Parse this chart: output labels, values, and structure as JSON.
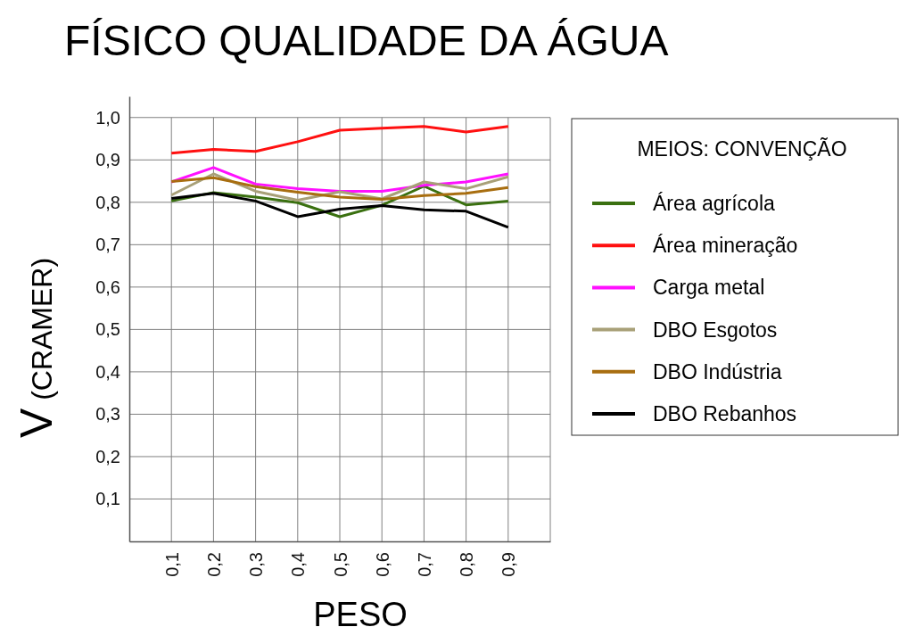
{
  "chart_data": {
    "type": "line",
    "title": "FÍSICO QUALIDADE DA ÁGUA",
    "xlabel": "PESO",
    "ylabel": "V (CRAMER)",
    "legend_title": "MEIOS: CONVENÇÃO",
    "x": [
      0.1,
      0.2,
      0.3,
      0.4,
      0.5,
      0.6,
      0.7,
      0.8,
      0.9
    ],
    "xlim": [
      0,
      1
    ],
    "ylim": [
      0,
      1.05
    ],
    "xticks": [
      {
        "value": 0.1,
        "label": "0,1"
      },
      {
        "value": 0.2,
        "label": "0,2"
      },
      {
        "value": 0.3,
        "label": "0,3"
      },
      {
        "value": 0.4,
        "label": "0,4"
      },
      {
        "value": 0.5,
        "label": "0,5"
      },
      {
        "value": 0.6,
        "label": "0,6"
      },
      {
        "value": 0.7,
        "label": "0,7"
      },
      {
        "value": 0.8,
        "label": "0,8"
      },
      {
        "value": 0.9,
        "label": "0,9"
      },
      {
        "value": 1,
        "label": null
      }
    ],
    "yticks": [
      {
        "value": 0.1,
        "label": "0,1"
      },
      {
        "value": 0.2,
        "label": "0,2"
      },
      {
        "value": 0.3,
        "label": "0,3"
      },
      {
        "value": 0.4,
        "label": "0,4"
      },
      {
        "value": 0.5,
        "label": "0,5"
      },
      {
        "value": 0.6,
        "label": "0,6"
      },
      {
        "value": 0.7,
        "label": "0,7"
      },
      {
        "value": 0.8,
        "label": "0,8"
      },
      {
        "value": 0.9,
        "label": "0,9"
      },
      {
        "value": 1,
        "label": "1,0"
      }
    ],
    "grid": true,
    "legend": "right",
    "marker": "none",
    "line_style": "solid",
    "series": [
      {
        "name": "Área agrícola",
        "color": "#3a7010",
        "values": [
          0.803,
          0.823,
          0.812,
          0.799,
          0.766,
          0.793,
          0.838,
          0.794,
          0.803
        ]
      },
      {
        "name": "Área mineração",
        "color": "#ff1010",
        "values": [
          0.916,
          0.925,
          0.92,
          0.943,
          0.97,
          0.975,
          0.979,
          0.966,
          0.979
        ]
      },
      {
        "name": "Carga metal",
        "color": "#ff10ff",
        "values": [
          0.848,
          0.882,
          0.843,
          0.832,
          0.826,
          0.826,
          0.84,
          0.848,
          0.867
        ]
      },
      {
        "name": "DBO Esgotos",
        "color": "#a8a078",
        "values": [
          0.817,
          0.867,
          0.826,
          0.805,
          0.825,
          0.808,
          0.848,
          0.832,
          0.86
        ]
      },
      {
        "name": "DBO Indústria",
        "color": "#a86e10",
        "values": [
          0.849,
          0.858,
          0.837,
          0.824,
          0.812,
          0.807,
          0.816,
          0.821,
          0.835
        ]
      },
      {
        "name": "DBO Rebanhos",
        "color": "#000000",
        "values": [
          0.809,
          0.821,
          0.803,
          0.766,
          0.784,
          0.792,
          0.782,
          0.779,
          0.741
        ]
      }
    ]
  }
}
